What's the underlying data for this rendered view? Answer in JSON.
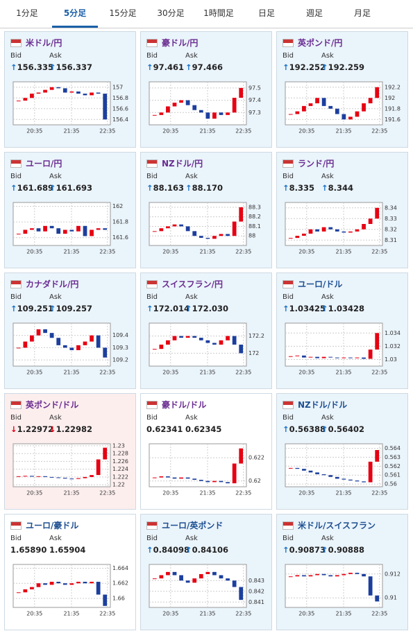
{
  "tabs": [
    "1分足",
    "5分足",
    "15分足",
    "30分足",
    "1時間足",
    "日足",
    "週足",
    "月足"
  ],
  "active_tab": 1,
  "labels": {
    "bid": "Bid",
    "ask": "Ask"
  },
  "up_color": "#e60012",
  "down_color": "#1c3f9e",
  "panels": [
    {
      "title": "米ドル/円",
      "title_color": "#6a2c91",
      "bg": "#eaf4fb",
      "arrow_color": "#1a73c8",
      "bid": "↑156.335",
      "ask": "↑156.337",
      "xlabels": [
        "20:35",
        "21:35",
        "22:35"
      ],
      "ylim": [
        156.3,
        157.1
      ],
      "yticks": [
        156.4,
        156.6,
        156.8,
        157
      ],
      "values": [
        156.75,
        156.8,
        156.88,
        156.9,
        156.95,
        157.0,
        156.98,
        156.9,
        156.92,
        156.88,
        156.85,
        156.9,
        156.88,
        156.4
      ]
    },
    {
      "title": "豪ドル/円",
      "title_color": "#6a2c91",
      "bg": "#eaf4fb",
      "arrow_color": "#1a73c8",
      "bid": "↑97.461",
      "ask": "↑97.466",
      "xlabels": [
        "20:35",
        "21:35",
        "22:35"
      ],
      "ylim": [
        97.2,
        97.55
      ],
      "yticks": [
        97.3,
        97.4,
        97.5
      ],
      "values": [
        97.28,
        97.3,
        97.35,
        97.38,
        97.4,
        97.36,
        97.32,
        97.3,
        97.25,
        97.3,
        97.28,
        97.3,
        97.42,
        97.5
      ]
    },
    {
      "title": "英ポンド/円",
      "title_color": "#6a2c91",
      "bg": "#eaf4fb",
      "arrow_color": "#1a73c8",
      "bid": "↑192.252",
      "ask": "↑192.259",
      "xlabels": [
        "20:35",
        "21:35",
        "22:35"
      ],
      "ylim": [
        191.5,
        192.3
      ],
      "yticks": [
        191.6,
        191.8,
        192,
        192.2
      ],
      "values": [
        191.7,
        191.75,
        191.85,
        191.9,
        192.0,
        191.85,
        191.8,
        191.7,
        191.6,
        191.65,
        191.75,
        191.9,
        192.0,
        192.2
      ]
    },
    {
      "title": "ユーロ/円",
      "title_color": "#6a2c91",
      "bg": "#eaf4fb",
      "arrow_color": "#1a73c8",
      "bid": "↑161.689",
      "ask": "↑161.693",
      "xlabels": [
        "20:35",
        "21:35",
        "22:35"
      ],
      "ylim": [
        161.5,
        162.05
      ],
      "yticks": [
        161.6,
        161.8,
        162
      ],
      "values": [
        161.65,
        161.7,
        161.72,
        161.68,
        161.75,
        161.72,
        161.65,
        161.7,
        161.68,
        161.75,
        161.62,
        161.7,
        161.72,
        161.7
      ]
    },
    {
      "title": "NZドル/円",
      "title_color": "#6a2c91",
      "bg": "#eaf4fb",
      "arrow_color": "#1a73c8",
      "bid": "↑88.163",
      "ask": "↑88.170",
      "xlabels": [
        "20:35",
        "21:35",
        "22:35"
      ],
      "ylim": [
        87.9,
        88.35
      ],
      "yticks": [
        88,
        88.1,
        88.2,
        88.3
      ],
      "values": [
        88.05,
        88.08,
        88.1,
        88.12,
        88.1,
        88.05,
        88.0,
        87.98,
        87.97,
        88.0,
        88.02,
        88.0,
        88.15,
        88.3
      ]
    },
    {
      "title": "ランド/円",
      "title_color": "#6a2c91",
      "bg": "#eaf4fb",
      "arrow_color": "#1a73c8",
      "bid": "↑8.335",
      "ask": "↑8.344",
      "xlabels": [
        "20:35",
        "21:35",
        "22:35"
      ],
      "ylim": [
        8.305,
        8.345
      ],
      "yticks": [
        8.31,
        8.32,
        8.33,
        8.34
      ],
      "values": [
        8.312,
        8.314,
        8.316,
        8.32,
        8.318,
        8.322,
        8.32,
        8.318,
        8.317,
        8.318,
        8.32,
        8.325,
        8.33,
        8.34
      ]
    },
    {
      "title": "カナダドル/円",
      "title_color": "#6a2c91",
      "bg": "#eaf4fb",
      "arrow_color": "#1a73c8",
      "bid": "↑109.251",
      "ask": "↑109.257",
      "xlabels": [
        "20:35",
        "21:35",
        "22:35"
      ],
      "ylim": [
        109.15,
        109.5
      ],
      "yticks": [
        109.2,
        109.3,
        109.4
      ],
      "values": [
        109.3,
        109.35,
        109.4,
        109.45,
        109.42,
        109.38,
        109.32,
        109.3,
        109.28,
        109.32,
        109.35,
        109.4,
        109.3,
        109.22
      ]
    },
    {
      "title": "スイスフラン/円",
      "title_color": "#6a2c91",
      "bg": "#eaf4fb",
      "arrow_color": "#1a73c8",
      "bid": "↑172.014",
      "ask": "↑172.030",
      "xlabels": [
        "20:35",
        "21:35",
        "22:35"
      ],
      "ylim": [
        171.85,
        172.35
      ],
      "yticks": [
        172,
        172.2
      ],
      "values": [
        172.05,
        172.1,
        172.15,
        172.2,
        172.18,
        172.2,
        172.18,
        172.15,
        172.12,
        172.1,
        172.15,
        172.2,
        172.1,
        172.0
      ]
    },
    {
      "title": "ユーロ/ドル",
      "title_color": "#1d4f91",
      "bg": "#eaf4fb",
      "arrow_color": "#1a73c8",
      "bid": "↑1.03425",
      "ask": "↑1.03428",
      "xlabels": [
        "20:35",
        "21:35",
        "22:35"
      ],
      "ylim": [
        1.029,
        1.0355
      ],
      "yticks": [
        1.03,
        1.032,
        1.034
      ],
      "values": [
        1.0305,
        1.0306,
        1.0303,
        1.0304,
        1.0302,
        1.0304,
        1.0303,
        1.0302,
        1.0303,
        1.0302,
        1.0303,
        1.0301,
        1.0315,
        1.034
      ]
    },
    {
      "title": "英ポンド/ドル",
      "title_color": "#6a2c91",
      "bg": "#fdeeee",
      "arrow_color": "#e60012",
      "bid": "↓1.22972",
      "ask": "↓1.22982",
      "xlabels": [
        "20:35",
        "21:35",
        "22:35"
      ],
      "ylim": [
        1.2195,
        1.2305
      ],
      "yticks": [
        1.22,
        1.222,
        1.224,
        1.226,
        1.228,
        1.23
      ],
      "values": [
        1.2222,
        1.2223,
        1.2221,
        1.2222,
        1.222,
        1.2219,
        1.2218,
        1.2216,
        1.2215,
        1.2217,
        1.222,
        1.2225,
        1.2265,
        1.2295
      ]
    },
    {
      "title": "豪ドル/ドル",
      "title_color": "#6a2c91",
      "bg": "#ffffff",
      "arrow_color": "#222222",
      "bid": "0.62341",
      "ask": "0.62345",
      "xlabels": [
        "20:35",
        "21:35",
        "22:35"
      ],
      "ylim": [
        0.6195,
        0.6232
      ],
      "yticks": [
        0.62,
        0.622
      ],
      "values": [
        0.6203,
        0.6204,
        0.6203,
        0.6202,
        0.6203,
        0.6202,
        0.6201,
        0.62,
        0.6199,
        0.62,
        0.6199,
        0.6198,
        0.6215,
        0.6228
      ]
    },
    {
      "title": "NZドル/ドル",
      "title_color": "#1d4f91",
      "bg": "#eaf4fb",
      "arrow_color": "#1a73c8",
      "bid": "↑0.56388",
      "ask": "↑0.56402",
      "xlabels": [
        "20:35",
        "21:35",
        "22:35"
      ],
      "ylim": [
        0.5597,
        0.5645
      ],
      "yticks": [
        0.56,
        0.561,
        0.562,
        0.563,
        0.564
      ],
      "values": [
        0.5618,
        0.5617,
        0.5615,
        0.5613,
        0.5611,
        0.561,
        0.5608,
        0.5606,
        0.5605,
        0.5604,
        0.5603,
        0.5602,
        0.5625,
        0.5638
      ]
    },
    {
      "title": "ユーロ/豪ドル",
      "title_color": "#1d4f91",
      "bg": "#ffffff",
      "arrow_color": "#222222",
      "bid": "1.65890",
      "ask": "1.65904",
      "xlabels": [
        "20:35",
        "21:35",
        "22:35"
      ],
      "ylim": [
        1.6588,
        1.6645
      ],
      "yticks": [
        1.66,
        1.662,
        1.664
      ],
      "values": [
        1.6608,
        1.6612,
        1.6615,
        1.662,
        1.6618,
        1.6622,
        1.662,
        1.6618,
        1.662,
        1.6622,
        1.662,
        1.6622,
        1.6605,
        1.659
      ]
    },
    {
      "title": "ユーロ/英ポンド",
      "title_color": "#1d4f91",
      "bg": "#eaf4fb",
      "arrow_color": "#1a73c8",
      "bid": "↑0.84098",
      "ask": "↑0.84106",
      "xlabels": [
        "20:35",
        "21:35",
        "22:35"
      ],
      "ylim": [
        0.8405,
        0.8445
      ],
      "yticks": [
        0.841,
        0.842,
        0.843
      ],
      "values": [
        0.8432,
        0.8435,
        0.8438,
        0.8435,
        0.843,
        0.8428,
        0.8432,
        0.8436,
        0.8438,
        0.8435,
        0.8432,
        0.843,
        0.8424,
        0.8412
      ]
    },
    {
      "title": "米ドル/スイスフラン",
      "title_color": "#1d4f91",
      "bg": "#eaf4fb",
      "arrow_color": "#1a73c8",
      "bid": "↑0.90873",
      "ask": "↑0.90888",
      "xlabels": [
        "20:35",
        "21:35",
        "22:35"
      ],
      "ylim": [
        0.9092,
        0.9128
      ],
      "yticks": [
        0.91,
        0.912
      ],
      "values": [
        0.9118,
        0.9119,
        0.9118,
        0.9119,
        0.912,
        0.9119,
        0.9118,
        0.9119,
        0.912,
        0.9121,
        0.912,
        0.9118,
        0.9102,
        0.9097
      ]
    }
  ]
}
